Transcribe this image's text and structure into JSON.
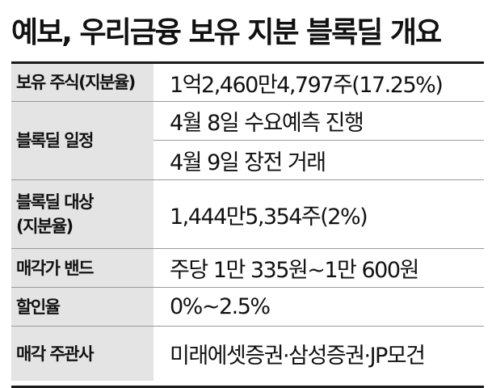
{
  "title": "예보, 우리금융 보유 지분 블록딜 개요",
  "rows": [
    {
      "label": "보유 주식(지분율)",
      "values": [
        "1억2,460만4,797주(17.25%)"
      ]
    },
    {
      "label": "블록딜 일정",
      "values": [
        "4월 8일 수요예측 진행",
        "4월 9일 장전 거래"
      ]
    },
    {
      "label_lines": [
        "블록딜 대상",
        "(지분율)"
      ],
      "values": [
        "1,444만5,354주(2%)"
      ]
    },
    {
      "label": "매각가 밴드",
      "values": [
        "주당 1만 335원~1만 600원"
      ]
    },
    {
      "label": "할인율",
      "values": [
        "0%~2.5%"
      ]
    },
    {
      "label": "매각 주관사",
      "values": [
        "미래에셋증권·삼성증권·JP모건"
      ]
    }
  ]
}
